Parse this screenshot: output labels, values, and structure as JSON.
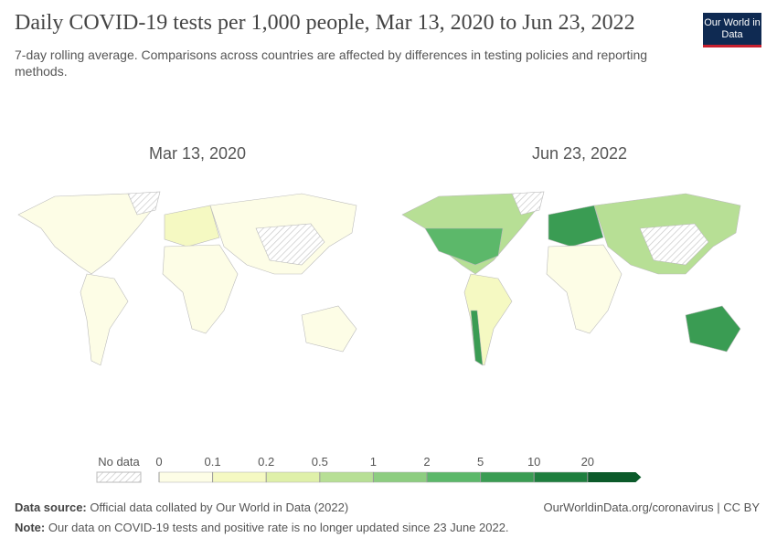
{
  "header": {
    "title": "Daily COVID-19 tests per 1,000 people, Mar 13, 2020 to Jun 23, 2022",
    "subtitle": "7-day rolling average. Comparisons across countries are affected by differences in testing policies and reporting methods.",
    "logo": "Our World in Data"
  },
  "maps": [
    {
      "title": "Mar 13, 2020"
    },
    {
      "title": "Jun 23, 2022"
    }
  ],
  "legend": {
    "no_data": "No data",
    "bins": [
      0,
      0.1,
      0.2,
      0.5,
      1,
      2,
      5,
      10,
      20
    ],
    "colors": [
      "#fdfde6",
      "#f5f9c2",
      "#dff0a9",
      "#b7df95",
      "#8dcd80",
      "#5cb86a",
      "#3a9c53",
      "#1e7e3e",
      "#0b5a2a"
    ]
  },
  "footer": {
    "source_label": "Data source:",
    "source": "Official data collated by Our World in Data (2022)",
    "credit": "OurWorldinData.org/coronavirus | CC BY",
    "note_label": "Note:",
    "note": "Our data on COVID-19 tests and positive rate is no longer updated since 23 June 2022."
  }
}
